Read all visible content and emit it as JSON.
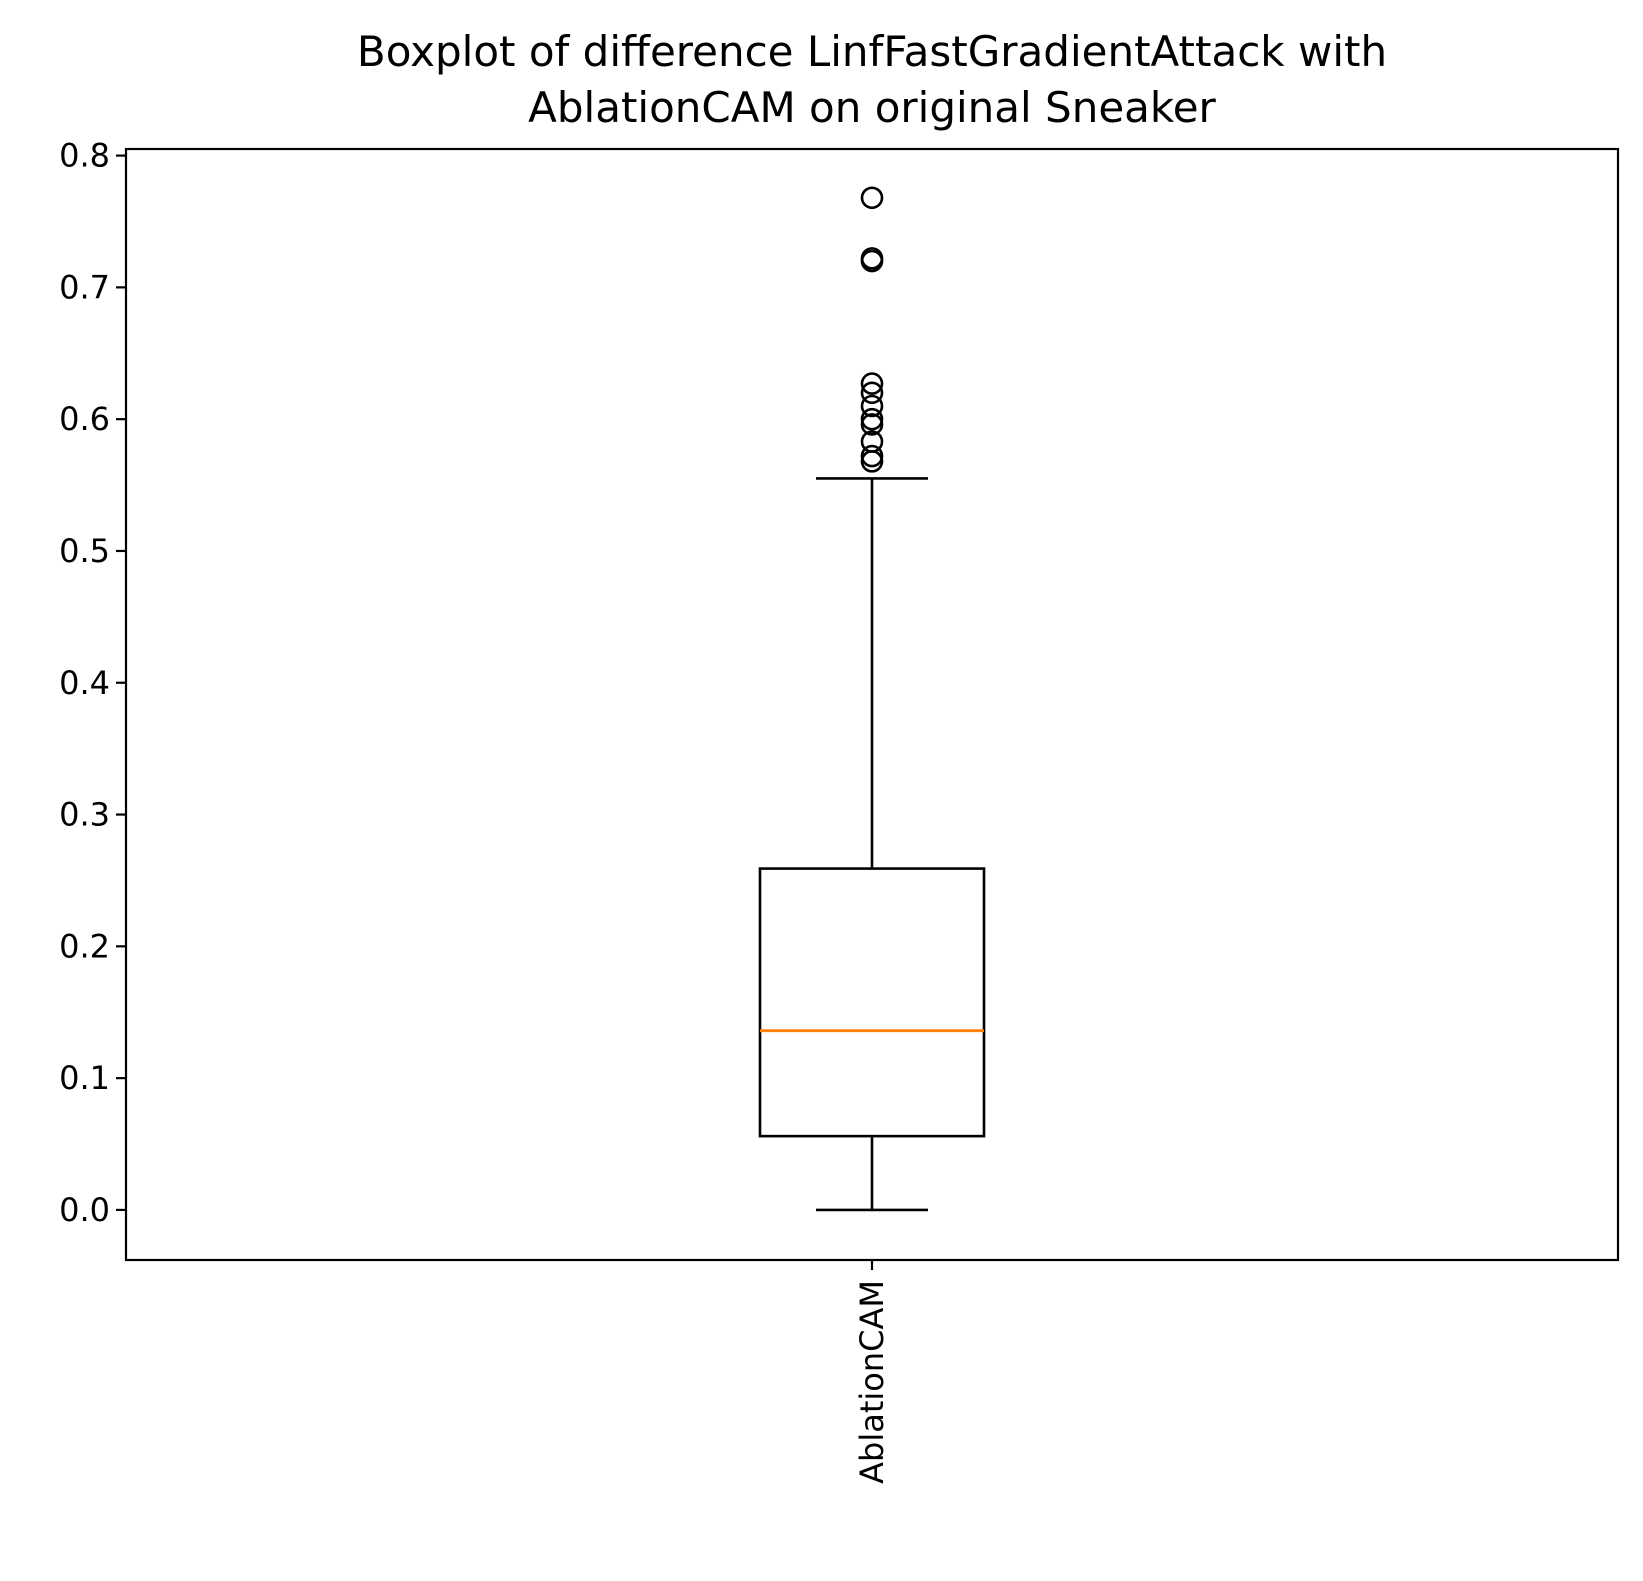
{
  "chart_data": {
    "type": "box",
    "title_lines": [
      "Boxplot of difference LinfFastGradientAttack with",
      "AblationCAM on original Sneaker"
    ],
    "xlabel": "",
    "ylabel": "",
    "ylim": [
      -0.038,
      0.805
    ],
    "yticks": [
      0.0,
      0.1,
      0.2,
      0.3,
      0.4,
      0.5,
      0.6,
      0.7,
      0.8
    ],
    "ytick_labels": [
      "0.0",
      "0.1",
      "0.2",
      "0.3",
      "0.4",
      "0.5",
      "0.6",
      "0.7",
      "0.8"
    ],
    "categories": [
      "AblationCAM"
    ],
    "boxes": [
      {
        "label": "AblationCAM",
        "whisker_low": 0.0,
        "q1": 0.056,
        "median": 0.136,
        "q3": 0.259,
        "whisker_high": 0.555,
        "outliers": [
          0.568,
          0.572,
          0.583,
          0.596,
          0.6,
          0.61,
          0.62,
          0.627,
          0.72,
          0.722,
          0.768
        ]
      }
    ],
    "grid": false,
    "legend": "none",
    "colors": {
      "box": "#000000",
      "median": "#ff7f0e",
      "outlier": "#000000"
    }
  }
}
